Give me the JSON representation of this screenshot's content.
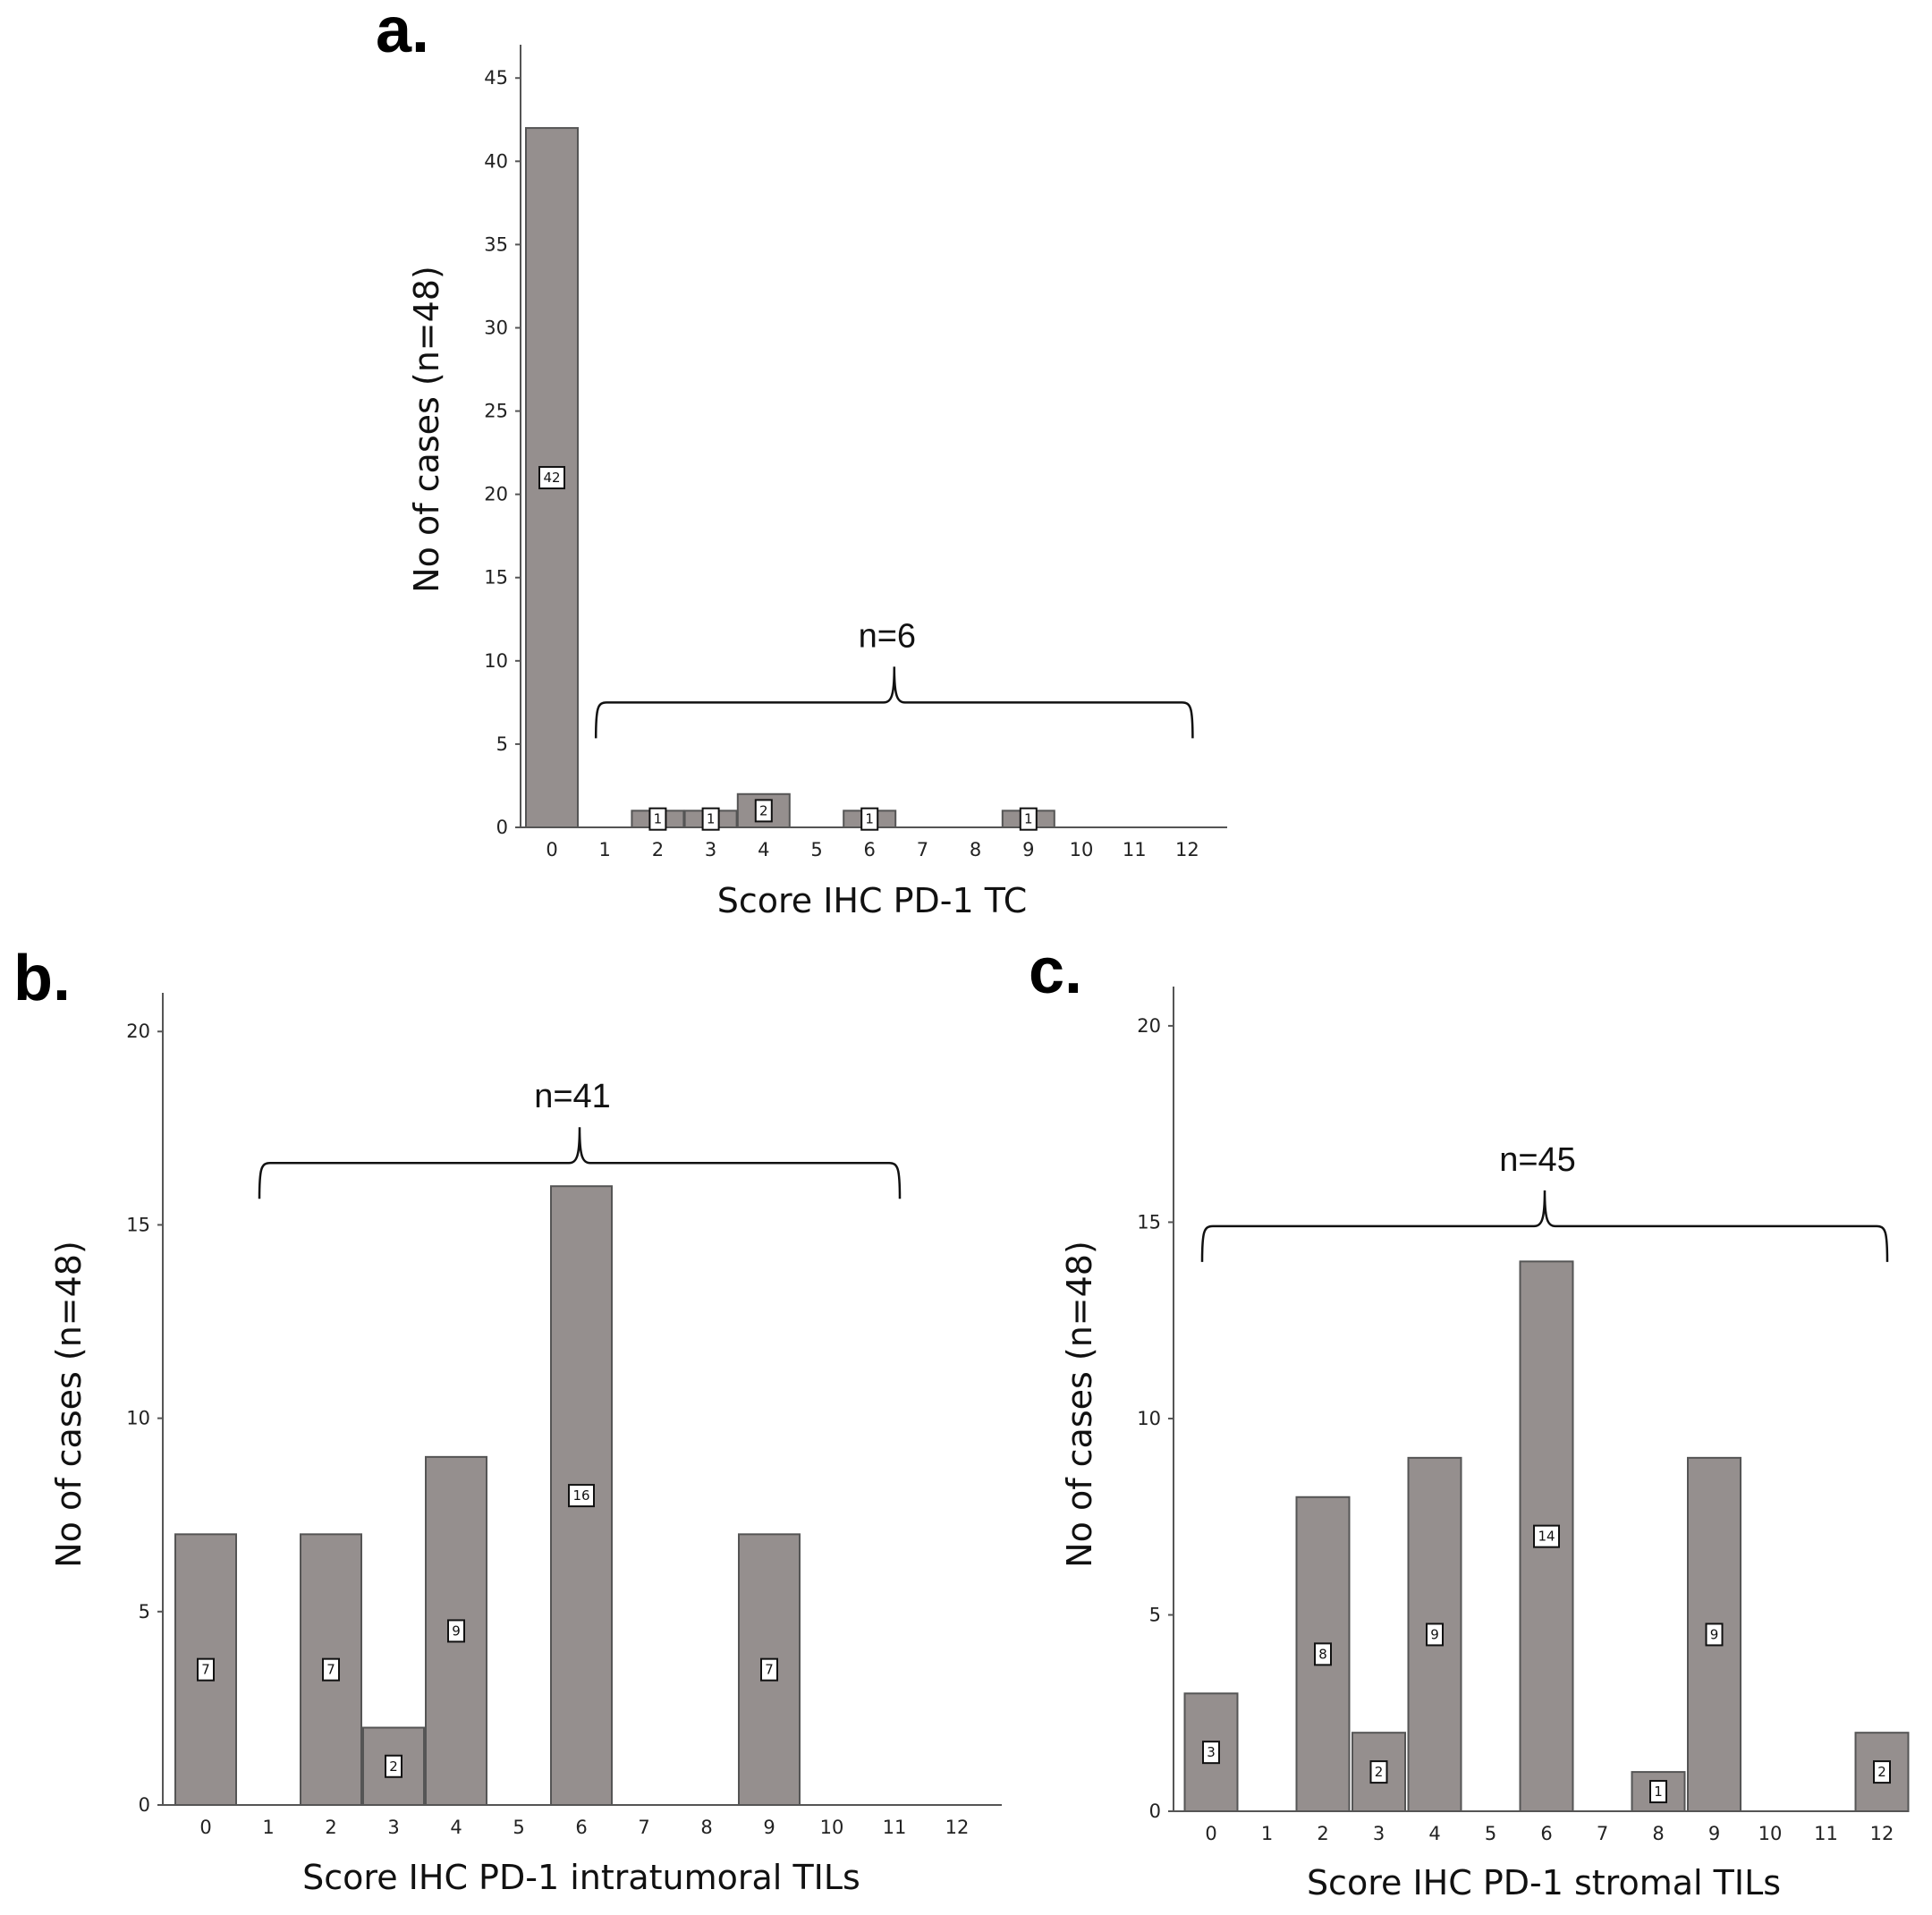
{
  "chart_data": [
    {
      "type": "bar",
      "panel": "a.",
      "xlabel": "Score IHC PD-1 TC",
      "ylabel": "No of cases (n=48)",
      "categories": [
        "0",
        "1",
        "2",
        "3",
        "4",
        "5",
        "6",
        "7",
        "8",
        "9",
        "10",
        "11",
        "12"
      ],
      "values": [
        42,
        0,
        1,
        1,
        2,
        0,
        1,
        0,
        0,
        1,
        0,
        0,
        0
      ],
      "yticks": [
        0,
        5,
        10,
        15,
        20,
        25,
        30,
        35,
        40,
        45
      ],
      "ylim": [
        0,
        47
      ],
      "bracket": {
        "label": "n=6",
        "from": "1",
        "to": "12",
        "value": 7.5
      }
    },
    {
      "type": "bar",
      "panel": "b.",
      "xlabel": "Score IHC PD-1 intratumoral TILs",
      "ylabel": "No of cases (n=48)",
      "categories": [
        "0",
        "1",
        "2",
        "3",
        "4",
        "5",
        "6",
        "7",
        "8",
        "9",
        "10",
        "11",
        "12"
      ],
      "values": [
        7,
        0,
        7,
        2,
        9,
        0,
        16,
        0,
        0,
        7,
        0,
        0,
        0
      ],
      "yticks": [
        0,
        5,
        10,
        15,
        20
      ],
      "ylim": [
        0,
        21
      ],
      "bracket": {
        "label": "n=41",
        "from": "1",
        "to": "11",
        "value": 16.6
      }
    },
    {
      "type": "bar",
      "panel": "c.",
      "xlabel": "Score IHC PD-1 stromal TILs",
      "ylabel": "No of cases (n=48)",
      "categories": [
        "0",
        "1",
        "2",
        "3",
        "4",
        "5",
        "6",
        "7",
        "8",
        "9",
        "10",
        "11",
        "12"
      ],
      "values": [
        3,
        0,
        8,
        2,
        9,
        0,
        14,
        0,
        1,
        9,
        0,
        0,
        2
      ],
      "yticks": [
        0,
        5,
        10,
        15,
        20
      ],
      "ylim": [
        0,
        21
      ],
      "bracket": {
        "label": "n=45",
        "from": "0",
        "to": "12",
        "value": 14.9
      }
    }
  ]
}
